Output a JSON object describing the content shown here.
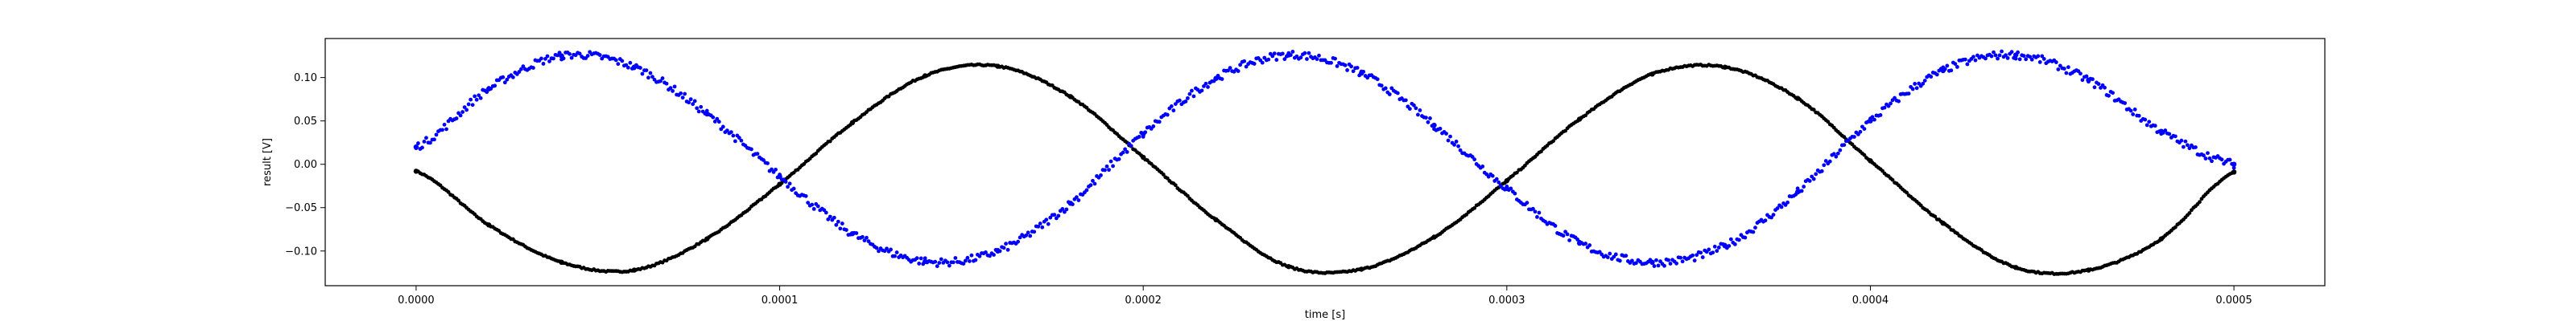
{
  "chart_data": {
    "type": "scatter",
    "title": "",
    "xlabel": "time [s]",
    "ylabel": "result [V]",
    "xlim": [
      -2.5e-05,
      0.000525
    ],
    "ylim": [
      -0.14,
      0.145
    ],
    "grid": false,
    "legend": "none",
    "xticks": [
      {
        "value": 0.0,
        "label": "0.0000"
      },
      {
        "value": 0.0001,
        "label": "0.0001"
      },
      {
        "value": 0.0002,
        "label": "0.0002"
      },
      {
        "value": 0.0003,
        "label": "0.0003"
      },
      {
        "value": 0.0004,
        "label": "0.0004"
      },
      {
        "value": 0.0005,
        "label": "0.0005"
      }
    ],
    "yticks": [
      {
        "value": 0.1,
        "label": "0.10"
      },
      {
        "value": 0.05,
        "label": "0.05"
      },
      {
        "value": 0.0,
        "label": "0.00"
      },
      {
        "value": -0.05,
        "label": "−0.05"
      },
      {
        "value": -0.1,
        "label": "−0.10"
      }
    ],
    "series": [
      {
        "color": "#000000",
        "marker": "dot",
        "x": [
          0.0,
          2e-05,
          4e-05,
          6e-05,
          8e-05,
          0.0001,
          0.00012,
          0.00014,
          0.00016,
          0.00018,
          0.0002,
          0.00022,
          0.00024,
          0.00026,
          0.00028,
          0.0003,
          0.00032,
          0.00034,
          0.00036,
          0.00038,
          0.0004,
          0.00042,
          0.00044,
          0.00046,
          0.00048,
          0.0005
        ],
        "y": [
          -0.008,
          -0.07,
          -0.113,
          -0.122,
          -0.086,
          -0.023,
          0.048,
          0.102,
          0.113,
          0.078,
          0.008,
          -0.064,
          -0.118,
          -0.121,
          -0.084,
          -0.019,
          0.052,
          0.104,
          0.112,
          0.076,
          0.004,
          -0.068,
          -0.119,
          -0.122,
          -0.086,
          -0.009
        ]
      },
      {
        "color": "#0000ff",
        "marker": "dot",
        "x": [
          0.0,
          2e-05,
          4e-05,
          6e-05,
          8e-05,
          0.0001,
          0.00012,
          0.00014,
          0.00016,
          0.00018,
          0.0002,
          0.00022,
          0.00024,
          0.00026,
          0.00028,
          0.0003,
          0.00032,
          0.00034,
          0.00036,
          0.00038,
          0.0004,
          0.00042,
          0.00044,
          0.00046,
          0.00048,
          0.0005
        ],
        "y": [
          0.02,
          0.087,
          0.125,
          0.112,
          0.058,
          -0.014,
          -0.08,
          -0.112,
          -0.1,
          -0.045,
          0.035,
          0.099,
          0.126,
          0.105,
          0.045,
          -0.028,
          -0.091,
          -0.113,
          -0.094,
          -0.032,
          0.05,
          0.108,
          0.126,
          0.097,
          0.038,
          0.0
        ]
      }
    ]
  }
}
